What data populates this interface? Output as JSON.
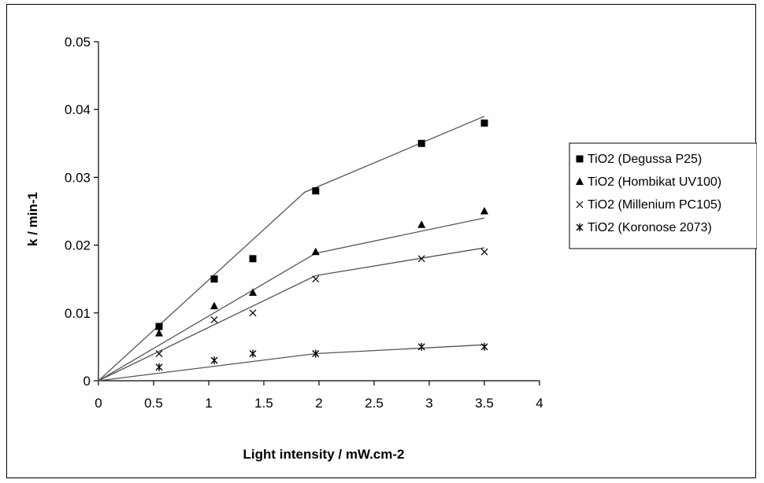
{
  "chart_data": {
    "type": "scatter",
    "title": "",
    "xlabel": "Light intensity / mW.cm-2",
    "ylabel": "k / min-1",
    "xlim": [
      0,
      4
    ],
    "ylim": [
      0,
      0.05
    ],
    "x_ticks": [
      0,
      0.5,
      1,
      1.5,
      2,
      2.5,
      3,
      3.5,
      4
    ],
    "x_tick_labels": [
      "0",
      "0.5",
      "1",
      "1.5",
      "2",
      "2.5",
      "3",
      "3.5",
      "4"
    ],
    "y_ticks": [
      0,
      0.01,
      0.02,
      0.03,
      0.04,
      0.05
    ],
    "y_tick_labels": [
      "0",
      "0.01",
      "0.02",
      "0.03",
      "0.04",
      "0.05"
    ],
    "grid": false,
    "legend_position": "right",
    "series": [
      {
        "name": "TiO2 (Degussa P25)",
        "marker": "square",
        "points": [
          [
            0.55,
            0.008
          ],
          [
            1.05,
            0.015
          ],
          [
            1.4,
            0.018
          ],
          [
            1.97,
            0.028
          ],
          [
            2.93,
            0.035
          ],
          [
            3.5,
            0.038
          ]
        ],
        "fit": [
          [
            0,
            0
          ],
          [
            1.87,
            0.0278
          ],
          [
            3.5,
            0.039
          ]
        ]
      },
      {
        "name": "TiO2 (Hombikat UV100)",
        "marker": "triangle",
        "points": [
          [
            0.55,
            0.007
          ],
          [
            1.05,
            0.011
          ],
          [
            1.4,
            0.013
          ],
          [
            1.97,
            0.019
          ],
          [
            2.93,
            0.023
          ],
          [
            3.5,
            0.025
          ]
        ],
        "fit": [
          [
            0,
            0
          ],
          [
            1.97,
            0.0188
          ],
          [
            3.5,
            0.024
          ]
        ]
      },
      {
        "name": "TiO2 (Millenium PC105)",
        "marker": "x",
        "points": [
          [
            0.55,
            0.004
          ],
          [
            1.05,
            0.009
          ],
          [
            1.4,
            0.01
          ],
          [
            1.97,
            0.015
          ],
          [
            2.93,
            0.018
          ],
          [
            3.5,
            0.019
          ]
        ],
        "fit": [
          [
            0,
            0
          ],
          [
            1.97,
            0.0155
          ],
          [
            3.5,
            0.0196
          ]
        ]
      },
      {
        "name": "TiO2 (Koronose 2073)",
        "marker": "asterisk",
        "points": [
          [
            0.55,
            0.002
          ],
          [
            1.05,
            0.003
          ],
          [
            1.4,
            0.004
          ],
          [
            1.97,
            0.004
          ],
          [
            2.93,
            0.005
          ],
          [
            3.5,
            0.005
          ]
        ],
        "fit": [
          [
            0,
            0
          ],
          [
            1.97,
            0.004
          ],
          [
            3.5,
            0.0053
          ]
        ]
      }
    ]
  }
}
